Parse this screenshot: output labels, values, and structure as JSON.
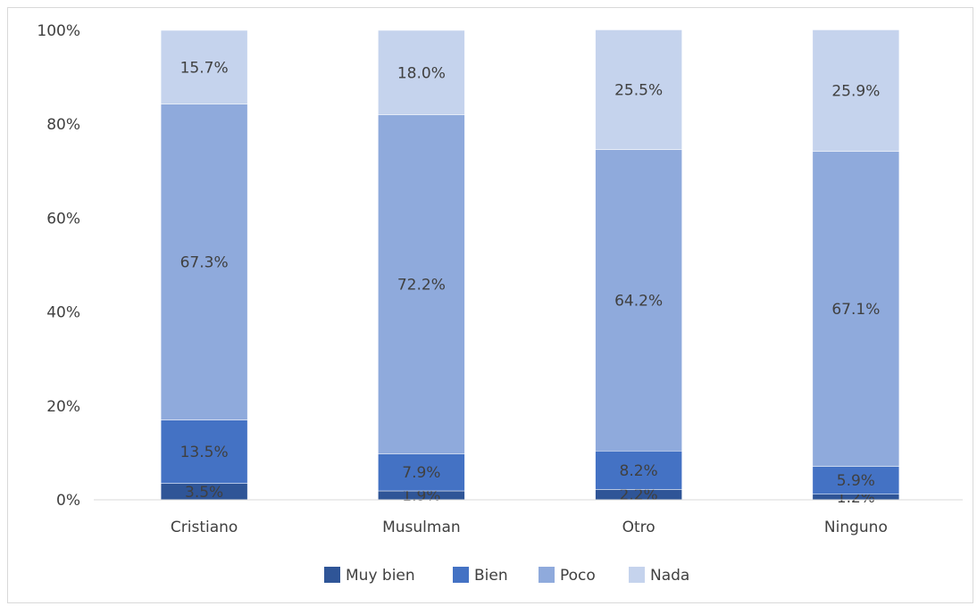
{
  "chart_data": {
    "type": "bar",
    "stacked": true,
    "categories": [
      "Cristiano",
      "Musulman",
      "Otro",
      "Ninguno"
    ],
    "series": [
      {
        "name": "Muy bien",
        "color": "#2f5597",
        "values": [
          3.5,
          1.9,
          2.2,
          1.2
        ],
        "labels": [
          "3.5%",
          "1.9%",
          "2.2%",
          "1.2%"
        ]
      },
      {
        "name": "Bien",
        "color": "#4472c4",
        "values": [
          13.5,
          7.9,
          8.2,
          5.9
        ],
        "labels": [
          "13.5%",
          "7.9%",
          "8.2%",
          "5.9%"
        ]
      },
      {
        "name": "Poco",
        "color": "#8faadc",
        "values": [
          67.3,
          72.2,
          64.2,
          67.1
        ],
        "labels": [
          "67.3%",
          "72.2%",
          "64.2%",
          "67.1%"
        ]
      },
      {
        "name": "Nada",
        "color": "#c5d3ed",
        "values": [
          15.7,
          18.0,
          25.5,
          25.9
        ],
        "labels": [
          "15.7%",
          "18.0%",
          "25.5%",
          "25.9%"
        ]
      }
    ],
    "y_ticks": [
      "0%",
      "20%",
      "40%",
      "60%",
      "80%",
      "100%"
    ],
    "ylim": [
      0,
      100
    ],
    "grid": false,
    "legend": "bottom"
  }
}
